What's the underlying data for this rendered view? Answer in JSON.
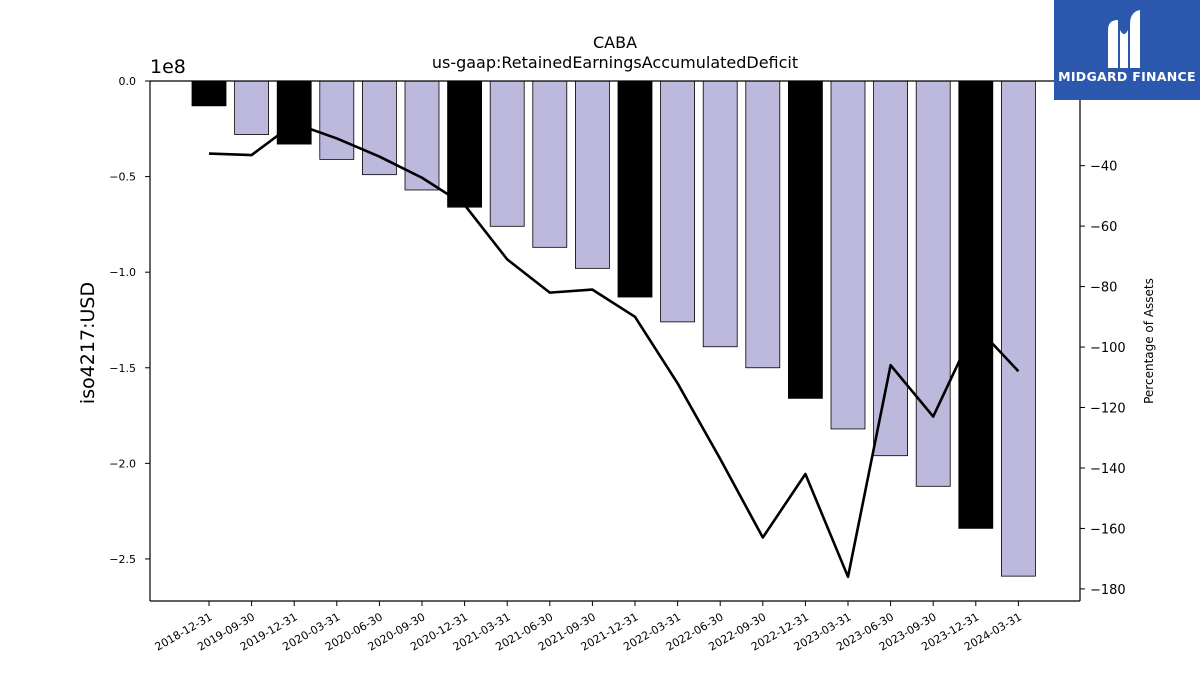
{
  "brand": {
    "name": "MIDGARD FINANCE",
    "logo_icon": "midgard-m-icon",
    "bg_color": "#2b57ad"
  },
  "chart_data": {
    "type": "bar",
    "title": "CABA",
    "subtitle": "us-gaap:RetainedEarningsAccumulatedDeficit",
    "ylabel": "iso4217:USD",
    "y2label": "Percentage of Assets",
    "y_offset_label": "1e8",
    "categories": [
      "2018-12-31",
      "2019-09-30",
      "2019-12-31",
      "2020-03-31",
      "2020-06-30",
      "2020-09-30",
      "2020-12-31",
      "2021-03-31",
      "2021-06-30",
      "2021-09-30",
      "2021-12-31",
      "2022-03-31",
      "2022-06-30",
      "2022-09-30",
      "2022-12-31",
      "2023-03-31",
      "2023-06-30",
      "2023-09-30",
      "2023-12-31",
      "2024-03-31"
    ],
    "series": [
      {
        "type": "bar",
        "values": [
          -0.13,
          -0.28,
          -0.33,
          -0.41,
          -0.49,
          -0.57,
          -0.66,
          -0.76,
          -0.87,
          -0.98,
          -1.13,
          -1.26,
          -1.39,
          -1.5,
          -1.66,
          -1.82,
          -1.96,
          -2.12,
          -2.34,
          -2.59
        ],
        "highlight": [
          true,
          false,
          true,
          false,
          false,
          false,
          true,
          false,
          false,
          false,
          true,
          false,
          false,
          false,
          true,
          false,
          false,
          false,
          true,
          false
        ]
      },
      {
        "type": "line",
        "axis": "right",
        "values": [
          -36,
          -36.5,
          -26,
          -31,
          -37,
          -44,
          -53,
          -71,
          -82,
          -81,
          -90,
          -112,
          -137,
          -163,
          -142,
          -176,
          -106,
          -123,
          -93,
          -108
        ]
      }
    ],
    "ylim": [
      -2.72,
      0.0
    ],
    "yticks": [
      "0.0",
      "−0.5",
      "−1.0",
      "−1.5",
      "−2.0",
      "−2.5"
    ],
    "ytick_values": [
      0.0,
      -0.5,
      -1.0,
      -1.5,
      -2.0,
      -2.5
    ],
    "y2lim": [
      -184,
      -12
    ],
    "y2ticks": [
      "−40",
      "−60",
      "−80",
      "−100",
      "−120",
      "−140",
      "−160",
      "−180"
    ],
    "y2tick_values": [
      -40,
      -60,
      -80,
      -100,
      -120,
      -140,
      -160,
      -180
    ],
    "colors": {
      "highlight": "#000000",
      "normal": "#bcb9dc",
      "line": "#000000"
    },
    "grid": false
  }
}
